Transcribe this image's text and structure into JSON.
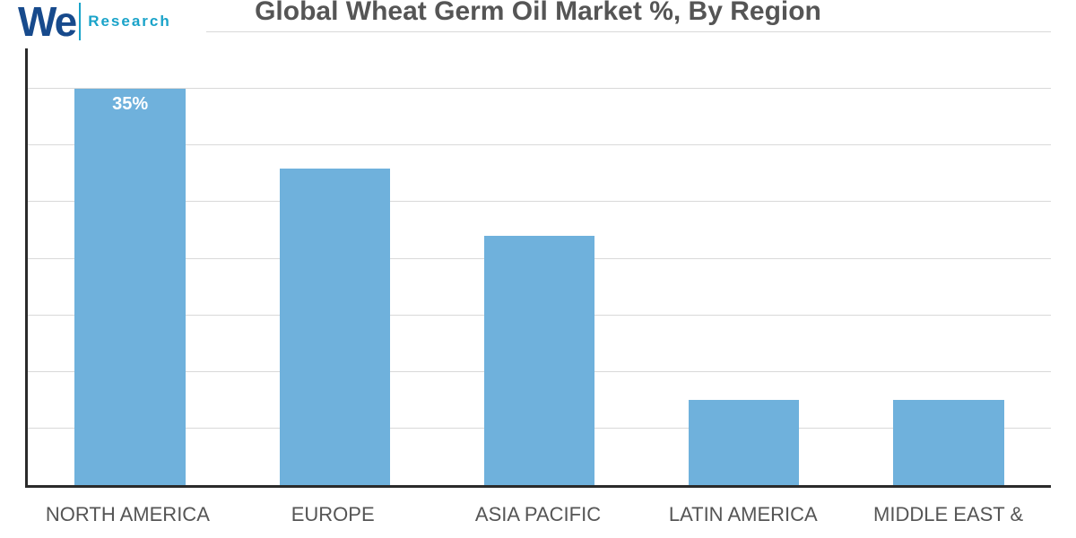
{
  "logo": {
    "text_primary": "We",
    "text_sub": "Research",
    "color_primary": "#174a8c",
    "color_accent": "#e03a3a",
    "color_sub": "#1aa3c9"
  },
  "chart": {
    "type": "bar",
    "title": "Global Wheat Germ Oil Market %, By Region",
    "title_color": "#555555",
    "title_fontsize": 30,
    "background_color": "#ffffff",
    "axis_color": "#2b2b2b",
    "grid_color": "#d9d9d9",
    "grid_lines": [
      12.5,
      25,
      37.5,
      50,
      62.5,
      75,
      87.5,
      100
    ],
    "ylim": [
      0,
      40
    ],
    "categories": [
      "NORTH AMERICA",
      "EUROPE",
      "ASIA PACIFIC",
      "LATIN AMERICA",
      "MIDDLE EAST &"
    ],
    "values": [
      35,
      28,
      22,
      7.5,
      7.5
    ],
    "value_labels": [
      "35%",
      "",
      "",
      "",
      ""
    ],
    "bar_color": "#6fb1dc",
    "bar_width_pct": 54,
    "bar_label_color": "#ffffff",
    "bar_label_fontsize": 20,
    "x_label_color": "#555555",
    "x_label_fontsize": 22
  }
}
